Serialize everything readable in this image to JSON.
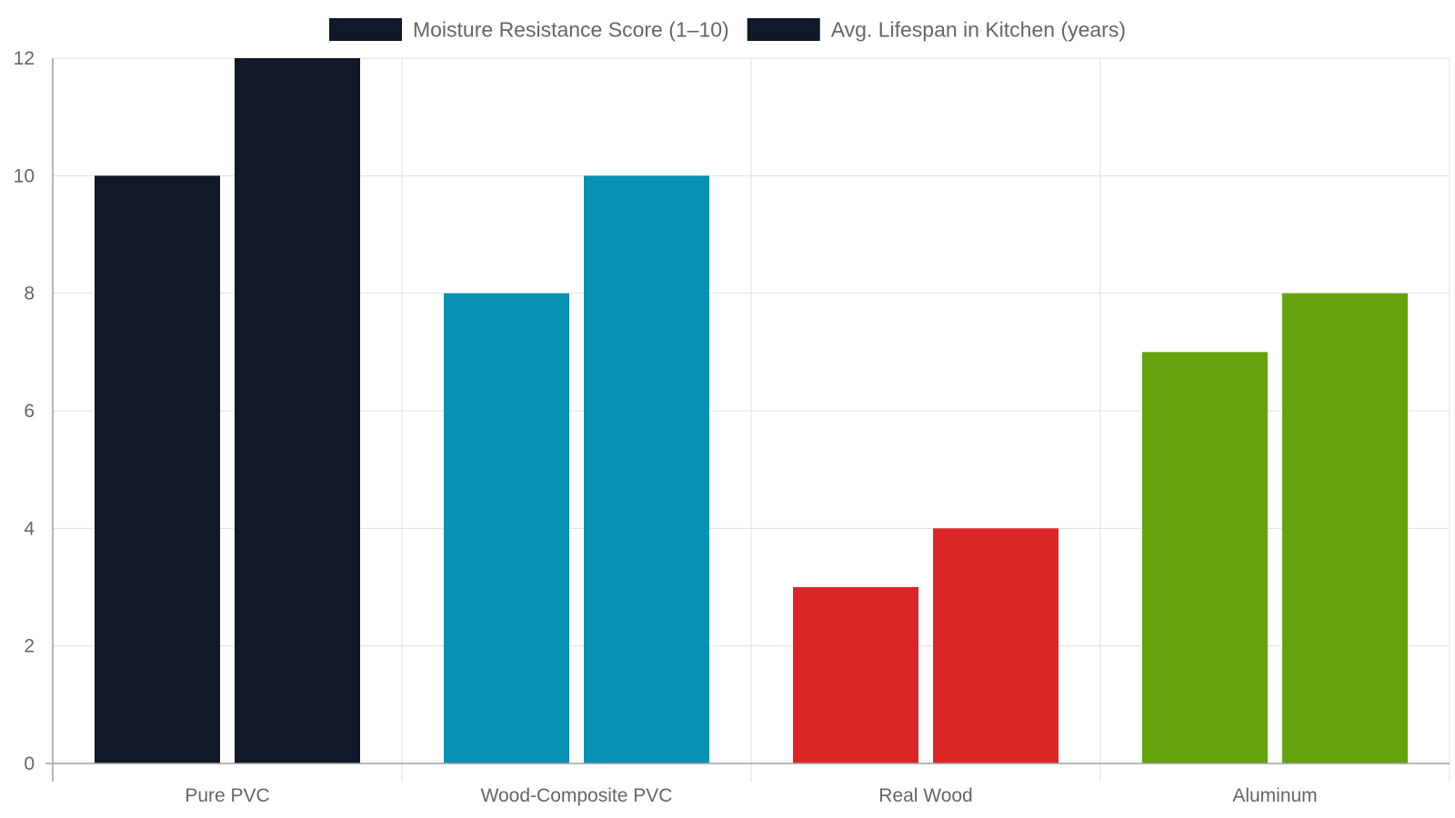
{
  "chart_data": {
    "type": "bar",
    "categories": [
      "Pure PVC",
      "Wood-Composite PVC",
      "Real Wood",
      "Aluminum"
    ],
    "series": [
      {
        "name": "Moisture Resistance Score (1–10)",
        "values": [
          10,
          8,
          3,
          7
        ]
      },
      {
        "name": "Avg. Lifespan in Kitchen (years)",
        "values": [
          12,
          10,
          4,
          8
        ]
      }
    ],
    "category_colors": [
      "#111827",
      "#0891b2",
      "#dc2626",
      "#65a30d"
    ],
    "legend_color": "#111827",
    "ylim": [
      0,
      12
    ],
    "y_ticks": [
      0,
      2,
      4,
      6,
      8,
      10,
      12
    ],
    "legend_position": "top",
    "grid": true
  }
}
